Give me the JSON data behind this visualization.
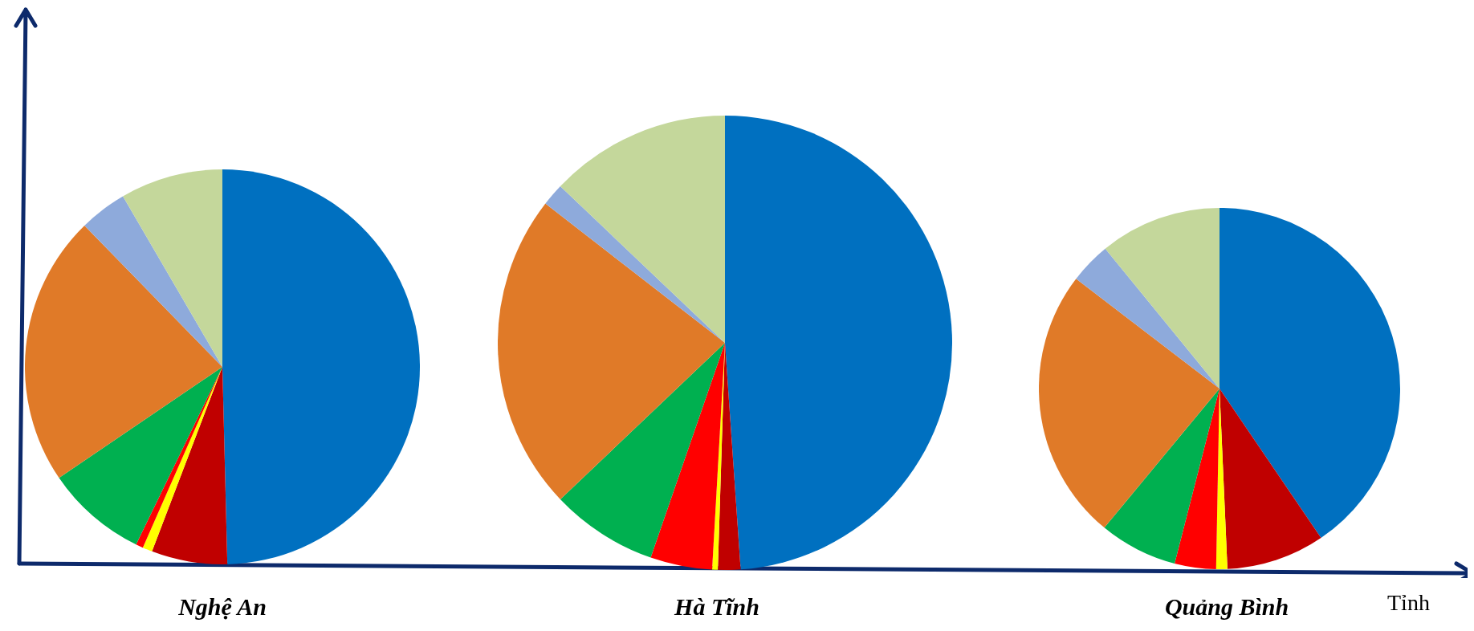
{
  "chart_data": [
    {
      "type": "pie",
      "title": "Nghệ An",
      "categories": [
        null,
        null,
        null,
        null,
        null,
        null,
        null,
        null
      ],
      "values": [
        49.6,
        6.2,
        0.8,
        0.6,
        8.3,
        22.2,
        3.9,
        8.4
      ],
      "colors": [
        "#0070c0",
        "#c00000",
        "#ffff00",
        "#ff0000",
        "#00b050",
        "#e07a28",
        "#8eaadb",
        "#c4d79b"
      ],
      "legend": false
    },
    {
      "type": "pie",
      "title": "Hà Tĩnh",
      "categories": [
        null,
        null,
        null,
        null,
        null,
        null,
        null,
        null
      ],
      "values": [
        48.9,
        1.6,
        0.4,
        4.4,
        7.6,
        22.6,
        1.6,
        12.9
      ],
      "colors": [
        "#0070c0",
        "#c00000",
        "#ffff00",
        "#ff0000",
        "#00b050",
        "#e07a28",
        "#8eaadb",
        "#c4d79b"
      ],
      "legend": false
    },
    {
      "type": "pie",
      "title": "Quảng Bình",
      "xlabel": "Tỉnh",
      "categories": [
        null,
        null,
        null,
        null,
        null,
        null,
        null,
        null
      ],
      "values": [
        40.5,
        8.8,
        1.0,
        3.7,
        7.0,
        24.4,
        3.7,
        10.9
      ],
      "colors": [
        "#0070c0",
        "#c00000",
        "#ffff00",
        "#ff0000",
        "#00b050",
        "#e07a28",
        "#8eaadb",
        "#c4d79b"
      ],
      "legend": false
    }
  ]
}
